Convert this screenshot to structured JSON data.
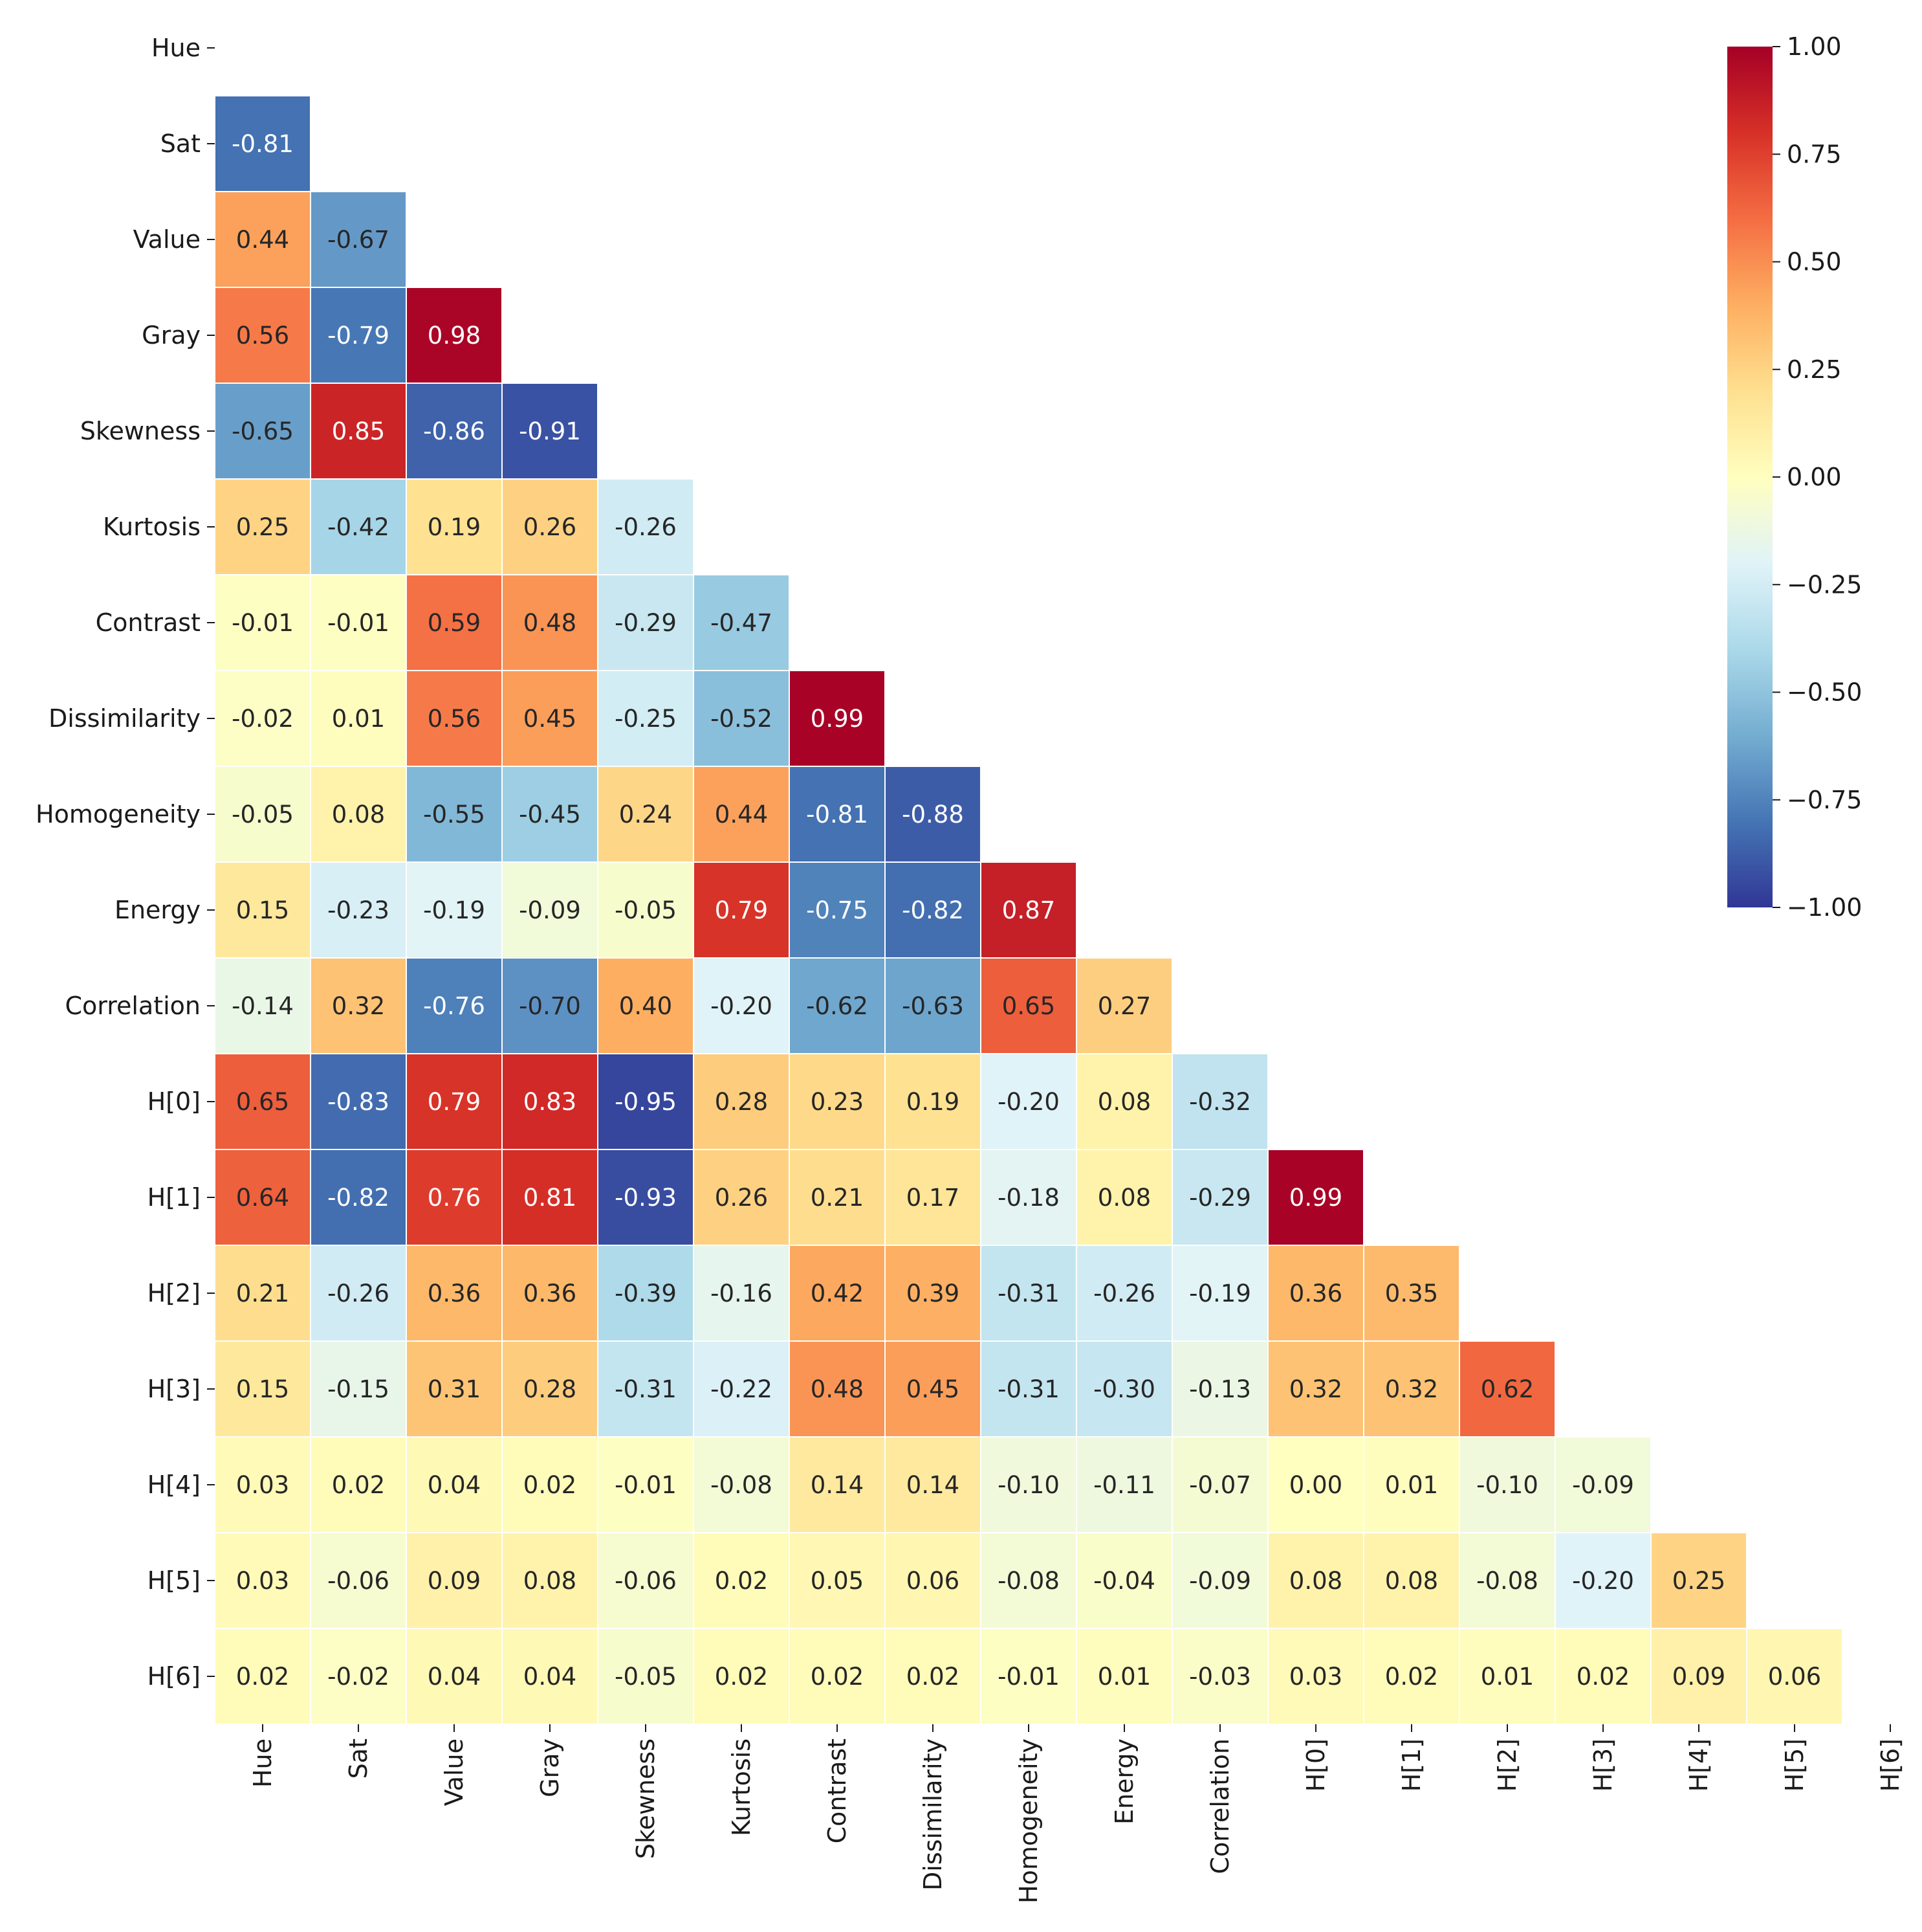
{
  "chart_data": {
    "type": "heatmap",
    "title": "",
    "xlabel": "",
    "ylabel": "",
    "variables": [
      "Hue",
      "Sat",
      "Value",
      "Gray",
      "Skewness",
      "Kurtosis",
      "Contrast",
      "Dissimilarity",
      "Homogeneity",
      "Energy",
      "Correlation",
      "H[0]",
      "H[1]",
      "H[2]",
      "H[3]",
      "H[4]",
      "H[5]",
      "H[6]"
    ],
    "x_labels": [
      "Hue",
      "Sat",
      "Value",
      "Gray",
      "Skewness",
      "Kurtosis",
      "Contrast",
      "Dissimilarity",
      "Homogeneity",
      "Energy",
      "Correlation",
      "H[0]",
      "H[1]",
      "H[2]",
      "H[3]",
      "H[4]",
      "H[5]",
      "H[6]"
    ],
    "y_labels": [
      "Hue",
      "Sat",
      "Value",
      "Gray",
      "Skewness",
      "Kurtosis",
      "Contrast",
      "Dissimilarity",
      "Homogeneity",
      "Energy",
      "Correlation",
      "H[0]",
      "H[1]",
      "H[2]",
      "H[3]",
      "H[4]",
      "H[5]",
      "H[6]"
    ],
    "mask": "upper-triangle-including-diagonal",
    "colormap": "RdYlBu_r",
    "vmin": -1.0,
    "vmax": 1.0,
    "value_format": "0.00",
    "rows": [
      [],
      [
        -0.81
      ],
      [
        0.44,
        -0.67
      ],
      [
        0.56,
        -0.79,
        0.98
      ],
      [
        -0.65,
        0.85,
        -0.86,
        -0.91
      ],
      [
        0.25,
        -0.42,
        0.19,
        0.26,
        -0.26
      ],
      [
        -0.01,
        -0.01,
        0.59,
        0.48,
        -0.29,
        -0.47
      ],
      [
        -0.02,
        0.01,
        0.56,
        0.45,
        -0.25,
        -0.52,
        0.99
      ],
      [
        -0.05,
        0.08,
        -0.55,
        -0.45,
        0.24,
        0.44,
        -0.81,
        -0.88
      ],
      [
        0.15,
        -0.23,
        -0.19,
        -0.09,
        -0.05,
        0.79,
        -0.75,
        -0.82,
        0.87
      ],
      [
        -0.14,
        0.32,
        -0.76,
        -0.7,
        0.4,
        -0.2,
        -0.62,
        -0.63,
        0.65,
        0.27
      ],
      [
        0.65,
        -0.83,
        0.79,
        0.83,
        -0.95,
        0.28,
        0.23,
        0.19,
        -0.2,
        0.08,
        -0.32
      ],
      [
        0.64,
        -0.82,
        0.76,
        0.81,
        -0.93,
        0.26,
        0.21,
        0.17,
        -0.18,
        0.08,
        -0.29,
        0.99
      ],
      [
        0.21,
        -0.26,
        0.36,
        0.36,
        -0.39,
        -0.16,
        0.42,
        0.39,
        -0.31,
        -0.26,
        -0.19,
        0.36,
        0.35
      ],
      [
        0.15,
        -0.15,
        0.31,
        0.28,
        -0.31,
        -0.22,
        0.48,
        0.45,
        -0.31,
        -0.3,
        -0.13,
        0.32,
        0.32,
        0.62
      ],
      [
        0.03,
        0.02,
        0.04,
        0.02,
        -0.01,
        -0.08,
        0.14,
        0.14,
        -0.1,
        -0.11,
        -0.07,
        -0.0,
        0.01,
        -0.1,
        -0.09
      ],
      [
        0.03,
        -0.06,
        0.09,
        0.08,
        -0.06,
        0.02,
        0.05,
        0.06,
        -0.08,
        -0.04,
        -0.09,
        0.08,
        0.08,
        -0.08,
        -0.2,
        0.25
      ],
      [
        0.02,
        -0.02,
        0.04,
        0.04,
        -0.05,
        0.02,
        0.02,
        0.02,
        -0.01,
        0.01,
        -0.03,
        0.03,
        0.02,
        0.01,
        0.02,
        0.09,
        0.06
      ]
    ],
    "colorbar": {
      "ticks": [
        1.0,
        0.75,
        0.5,
        0.25,
        0.0,
        -0.25,
        -0.5,
        -0.75,
        -1.0
      ],
      "tick_labels": [
        "1.00",
        "0.75",
        "0.50",
        "0.25",
        "0.00",
        "−0.25",
        "−0.50",
        "−0.75",
        "−1.00"
      ],
      "placement": "right"
    },
    "grid": false,
    "legend": "none"
  }
}
